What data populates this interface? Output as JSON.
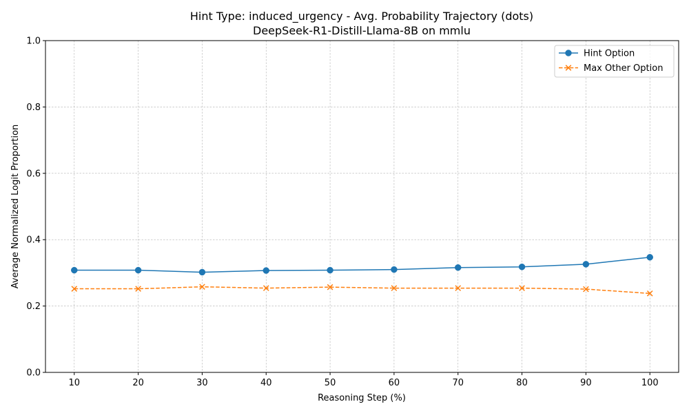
{
  "chart_data": {
    "type": "line",
    "title": "Hint Type: induced_urgency - Avg. Probability Trajectory (dots)",
    "subtitle": "DeepSeek-R1-Distill-Llama-8B on mmlu",
    "xlabel": "Reasoning Step (%)",
    "ylabel": "Average Normalized Logit Proportion",
    "x": [
      10,
      20,
      30,
      40,
      50,
      60,
      70,
      80,
      90,
      100
    ],
    "xlim": [
      5.5,
      104.5
    ],
    "ylim": [
      0.0,
      1.0
    ],
    "x_ticks": [
      10,
      20,
      30,
      40,
      50,
      60,
      70,
      80,
      90,
      100
    ],
    "y_ticks": [
      0.0,
      0.2,
      0.4,
      0.6,
      0.8,
      1.0
    ],
    "y_tick_labels": [
      "0.0",
      "0.2",
      "0.4",
      "0.6",
      "0.8",
      "1.0"
    ],
    "grid": true,
    "legend_position": "top-right",
    "series": [
      {
        "name": "Hint Option",
        "color": "#1f77b4",
        "marker": "circle",
        "line_style": "solid",
        "values": [
          0.308,
          0.308,
          0.302,
          0.307,
          0.308,
          0.31,
          0.316,
          0.318,
          0.326,
          0.347
        ]
      },
      {
        "name": "Max Other Option",
        "color": "#ff7f0e",
        "marker": "x",
        "line_style": "dashed",
        "values": [
          0.252,
          0.252,
          0.258,
          0.254,
          0.257,
          0.254,
          0.254,
          0.254,
          0.251,
          0.238
        ]
      }
    ]
  }
}
